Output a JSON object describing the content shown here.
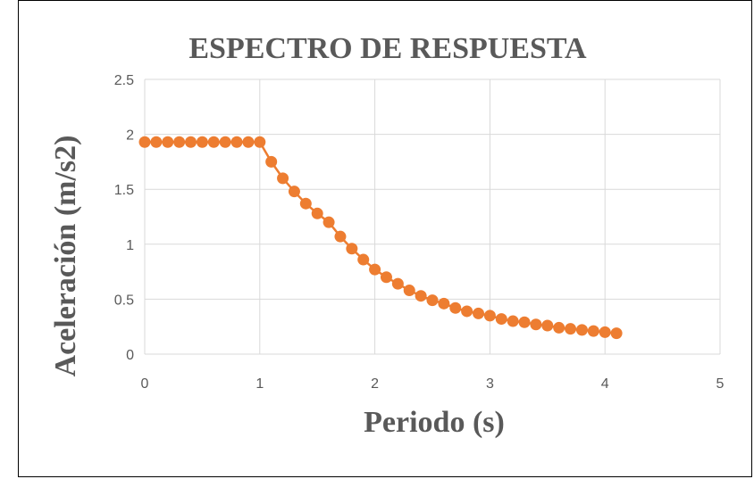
{
  "chart_data": {
    "type": "scatter",
    "title": "ESPECTRO DE RESPUESTA",
    "xlabel": "Periodo (s)",
    "ylabel": "Aceleración (m/s2)",
    "xlim": [
      0,
      5
    ],
    "ylim": [
      0,
      2.5
    ],
    "x_ticks": [
      "0",
      "1",
      "2",
      "3",
      "4",
      "5"
    ],
    "y_ticks": [
      "0",
      "0.5",
      "1",
      "1.5",
      "2",
      "2.5"
    ],
    "grid": true,
    "legend": "none",
    "marker_color": "#ED7D31",
    "series": [
      {
        "x": [
          0,
          0.1,
          0.2,
          0.3,
          0.4,
          0.5,
          0.6,
          0.7,
          0.8,
          0.9,
          1.0,
          1.1,
          1.2,
          1.3,
          1.4,
          1.5,
          1.6,
          1.7,
          1.8,
          1.9,
          2.0,
          2.1,
          2.2,
          2.3,
          2.4,
          2.5,
          2.6,
          2.7,
          2.8,
          2.9,
          3.0,
          3.1,
          3.2,
          3.3,
          3.4,
          3.5,
          3.6,
          3.7,
          3.8,
          3.9,
          4.0,
          4.1
        ],
        "y": [
          1.93,
          1.93,
          1.93,
          1.93,
          1.93,
          1.93,
          1.93,
          1.93,
          1.93,
          1.93,
          1.93,
          1.75,
          1.6,
          1.48,
          1.37,
          1.28,
          1.2,
          1.07,
          0.96,
          0.86,
          0.77,
          0.7,
          0.64,
          0.58,
          0.53,
          0.49,
          0.46,
          0.42,
          0.39,
          0.37,
          0.35,
          0.32,
          0.3,
          0.29,
          0.27,
          0.26,
          0.24,
          0.23,
          0.22,
          0.21,
          0.2,
          0.19
        ]
      }
    ]
  }
}
